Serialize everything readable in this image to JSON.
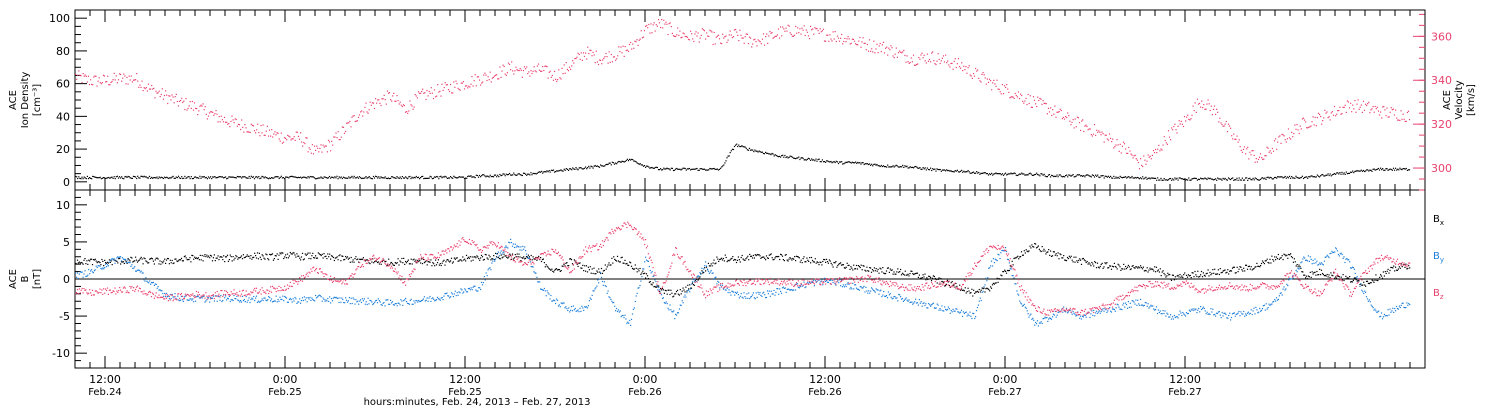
{
  "colors": {
    "density": "#000000",
    "velocity": "#e8426e",
    "bx": "#000000",
    "by": "#1e7fd8",
    "bz": "#e8426e"
  },
  "chart_data": [
    {
      "type": "scatter",
      "panel": "top",
      "ylabel_lines": [
        "ACE",
        "Ion Density",
        "[cm⁻³]"
      ],
      "ylabel_right_lines": [
        "ACE",
        "Velocity",
        "[km/s]"
      ],
      "ylim": [
        -5,
        105
      ],
      "yticks": [
        0,
        20,
        40,
        60,
        80,
        100
      ],
      "ylim_right": [
        290,
        372
      ],
      "yticks_right": [
        300,
        320,
        340,
        360
      ],
      "series": [
        {
          "axis": "left",
          "color": "#000000",
          "x": [
            0,
            1,
            2,
            3,
            4,
            5,
            6,
            7,
            8,
            9,
            10,
            11,
            12,
            13,
            14,
            15,
            16,
            17,
            18,
            19,
            20,
            21,
            22,
            23,
            24,
            25,
            26,
            27,
            28,
            29,
            30,
            31,
            32,
            33,
            34,
            35,
            36,
            37,
            38,
            39,
            40,
            41,
            42,
            43,
            44,
            45,
            46,
            47,
            48,
            49,
            50,
            51,
            52,
            53,
            54,
            55,
            56,
            57,
            58,
            59,
            60,
            61,
            62,
            63,
            64,
            65,
            66,
            67,
            68,
            69,
            70,
            71,
            72,
            73,
            74,
            75,
            76,
            77,
            78,
            79,
            80,
            81,
            82,
            83,
            84,
            85,
            86,
            87,
            88,
            89
          ],
          "y": [
            3,
            3,
            3,
            3,
            3,
            3,
            3,
            3,
            3,
            3,
            3,
            3,
            3,
            3,
            3,
            3,
            3,
            3,
            3,
            3,
            3,
            3,
            3,
            3,
            3,
            3,
            3,
            4,
            4,
            5,
            5,
            6,
            7,
            8,
            9,
            10,
            12,
            14,
            10,
            8,
            8,
            8,
            8,
            8,
            23,
            20,
            18,
            16,
            15,
            14,
            13,
            12,
            12,
            11,
            10,
            10,
            9,
            8,
            7,
            7,
            6,
            5,
            5,
            5,
            5,
            4,
            4,
            4,
            4,
            3,
            3,
            3,
            2,
            2,
            2,
            2,
            2,
            2,
            2,
            2,
            3,
            3,
            3,
            4,
            5,
            6,
            7,
            8,
            8,
            8
          ]
        },
        {
          "axis": "right",
          "color": "#e8426e",
          "x": [
            0,
            1,
            2,
            3,
            4,
            5,
            6,
            7,
            8,
            9,
            10,
            11,
            12,
            13,
            14,
            15,
            16,
            17,
            18,
            19,
            20,
            21,
            22,
            23,
            24,
            25,
            26,
            27,
            28,
            29,
            30,
            31,
            32,
            33,
            34,
            35,
            36,
            37,
            38,
            39,
            40,
            41,
            42,
            43,
            44,
            45,
            46,
            47,
            48,
            49,
            50,
            51,
            52,
            53,
            54,
            55,
            56,
            57,
            58,
            59,
            60,
            61,
            62,
            63,
            64,
            65,
            66,
            67,
            68,
            69,
            70,
            71,
            72,
            73,
            74,
            75,
            76,
            77,
            78,
            79,
            80,
            81,
            82,
            83,
            84,
            85,
            86,
            87,
            88,
            89
          ],
          "y": [
            342,
            340,
            340,
            341,
            341,
            336,
            333,
            330,
            328,
            325,
            322,
            320,
            318,
            316,
            314,
            314,
            307,
            311,
            318,
            326,
            330,
            333,
            327,
            333,
            335,
            337,
            339,
            341,
            343,
            346,
            344,
            345,
            342,
            347,
            353,
            350,
            352,
            355,
            363,
            366,
            362,
            360,
            361,
            358,
            361,
            358,
            359,
            362,
            363,
            362,
            361,
            360,
            358,
            356,
            355,
            352,
            350,
            351,
            349,
            347,
            343,
            339,
            336,
            333,
            330,
            327,
            323,
            320,
            317,
            313,
            309,
            302,
            307,
            316,
            322,
            331,
            326,
            316,
            308,
            304,
            311,
            316,
            321,
            323,
            326,
            329,
            328,
            326,
            325,
            324
          ]
        }
      ]
    },
    {
      "type": "scatter",
      "panel": "bottom",
      "ylabel_lines": [
        "ACE",
        "B",
        "[nT]"
      ],
      "ylim": [
        -12,
        12
      ],
      "yticks": [
        -10,
        -5,
        0,
        5,
        10
      ],
      "legend": [
        {
          "label": "B",
          "sub": "x",
          "color": "#000000"
        },
        {
          "label": "B",
          "sub": "y",
          "color": "#1e7fd8"
        },
        {
          "label": "B",
          "sub": "z",
          "color": "#e8426e"
        }
      ],
      "series": [
        {
          "color": "#000000",
          "x": [
            0,
            1,
            2,
            3,
            4,
            5,
            6,
            7,
            8,
            9,
            10,
            11,
            12,
            13,
            14,
            15,
            16,
            17,
            18,
            19,
            20,
            21,
            22,
            23,
            24,
            25,
            26,
            27,
            28,
            29,
            30,
            31,
            32,
            33,
            34,
            35,
            36,
            37,
            38,
            39,
            40,
            41,
            42,
            43,
            44,
            45,
            46,
            47,
            48,
            49,
            50,
            51,
            52,
            53,
            54,
            55,
            56,
            57,
            58,
            59,
            60,
            61,
            62,
            63,
            64,
            65,
            66,
            67,
            68,
            69,
            70,
            71,
            72,
            73,
            74,
            75,
            76,
            77,
            78,
            79,
            80,
            81,
            82,
            83,
            84,
            85,
            86,
            87,
            88,
            89
          ],
          "y": [
            2.5,
            2.4,
            2.3,
            2.5,
            2.6,
            2.5,
            2.4,
            2.7,
            2.9,
            3.0,
            2.8,
            3.1,
            3.2,
            3.0,
            3.3,
            3.1,
            3.2,
            3.0,
            2.8,
            2.6,
            2.4,
            2.3,
            2.5,
            2.6,
            2.2,
            2.4,
            2.8,
            3.0,
            3.1,
            3.2,
            2.9,
            2.7,
            1.0,
            2.5,
            1.5,
            1.0,
            3.0,
            2.0,
            0.5,
            -1.5,
            -2.0,
            -1.0,
            1.5,
            3.0,
            2.7,
            3.0,
            3.1,
            3.0,
            2.8,
            2.6,
            2.3,
            2.0,
            1.6,
            1.4,
            1.2,
            1.0,
            0.6,
            0.2,
            -0.5,
            -1.0,
            -2.0,
            -1.0,
            1.0,
            3.5,
            4.5,
            3.5,
            3.0,
            2.5,
            2.0,
            1.8,
            1.6,
            1.5,
            1.4,
            0.2,
            0.5,
            0.8,
            1.0,
            1.2,
            1.5,
            2.0,
            3.0,
            3.2,
            0.5,
            1.0,
            0.5,
            0.0,
            -0.5,
            0.5,
            1.5,
            2.0
          ]
        },
        {
          "color": "#1e7fd8",
          "x": [
            0,
            1,
            2,
            3,
            4,
            5,
            6,
            7,
            8,
            9,
            10,
            11,
            12,
            13,
            14,
            15,
            16,
            17,
            18,
            19,
            20,
            21,
            22,
            23,
            24,
            25,
            26,
            27,
            28,
            29,
            30,
            31,
            32,
            33,
            34,
            35,
            36,
            37,
            38,
            39,
            40,
            41,
            42,
            43,
            44,
            45,
            46,
            47,
            48,
            49,
            50,
            51,
            52,
            53,
            54,
            55,
            56,
            57,
            58,
            59,
            60,
            61,
            62,
            63,
            64,
            65,
            66,
            67,
            68,
            69,
            70,
            71,
            72,
            73,
            74,
            75,
            76,
            77,
            78,
            79,
            80,
            81,
            82,
            83,
            84,
            85,
            86,
            87,
            88,
            89
          ],
          "y": [
            0.5,
            1.0,
            2.0,
            3.0,
            1.5,
            -0.5,
            -2.0,
            -2.5,
            -2.6,
            -2.6,
            -2.5,
            -2.6,
            -2.7,
            -2.6,
            -2.7,
            -2.8,
            -2.5,
            -2.7,
            -2.8,
            -2.9,
            -3.0,
            -3.2,
            -3.0,
            -2.8,
            -2.5,
            -2.0,
            -1.5,
            -1.0,
            3.0,
            5.0,
            4.0,
            -1.0,
            -3.0,
            -4.0,
            -4.0,
            0.5,
            -4.0,
            -6.0,
            3.0,
            -2.0,
            -5.0,
            -1.0,
            2.0,
            -1.0,
            -2.0,
            -2.2,
            -2.0,
            -1.5,
            -1.0,
            -0.5,
            -0.2,
            -0.5,
            -1.0,
            -1.5,
            -2.0,
            -2.5,
            -3.0,
            -3.5,
            -4.0,
            -4.5,
            -5.0,
            2.0,
            4.0,
            -3.0,
            -6.0,
            -5.0,
            -4.0,
            -5.0,
            -4.5,
            -4.0,
            -3.5,
            -3.0,
            -4.0,
            -5.0,
            -4.5,
            -4.0,
            -4.5,
            -5.0,
            -4.5,
            -4.0,
            -3.0,
            0.0,
            3.0,
            2.0,
            4.0,
            2.0,
            -2.0,
            -5.0,
            -4.0,
            -3.0
          ]
        },
        {
          "color": "#e8426e",
          "x": [
            0,
            1,
            2,
            3,
            4,
            5,
            6,
            7,
            8,
            9,
            10,
            11,
            12,
            13,
            14,
            15,
            16,
            17,
            18,
            19,
            20,
            21,
            22,
            23,
            24,
            25,
            26,
            27,
            28,
            29,
            30,
            31,
            32,
            33,
            34,
            35,
            36,
            37,
            38,
            39,
            40,
            41,
            42,
            43,
            44,
            45,
            46,
            47,
            48,
            49,
            50,
            51,
            52,
            53,
            54,
            55,
            56,
            57,
            58,
            59,
            60,
            61,
            62,
            63,
            64,
            65,
            66,
            67,
            68,
            69,
            70,
            71,
            72,
            73,
            74,
            75,
            76,
            77,
            78,
            79,
            80,
            81,
            82,
            83,
            84,
            85,
            86,
            87,
            88,
            89
          ],
          "y": [
            -1.5,
            -1.8,
            -1.6,
            -1.5,
            -1.2,
            -2.0,
            -2.5,
            -2.3,
            -2.0,
            -2.2,
            -1.8,
            -1.8,
            -1.6,
            -1.4,
            -1.0,
            0.0,
            1.5,
            0.0,
            -0.5,
            2.0,
            3.0,
            2.0,
            -0.5,
            3.0,
            3.0,
            4.0,
            5.5,
            4.0,
            5.0,
            3.0,
            2.0,
            3.0,
            4.0,
            1.0,
            4.0,
            4.5,
            7.0,
            7.5,
            5.0,
            -2.0,
            4.0,
            1.0,
            -2.0,
            -1.0,
            -0.5,
            -0.3,
            -0.2,
            -0.3,
            -0.5,
            -0.4,
            -0.3,
            -0.2,
            0.0,
            0.2,
            -0.5,
            -1.0,
            -1.2,
            -0.8,
            -0.5,
            -1.0,
            2.0,
            4.5,
            4.0,
            -1.0,
            -4.0,
            -4.5,
            -4.0,
            -4.5,
            -4.0,
            -3.5,
            -2.0,
            -1.0,
            -0.5,
            -1.0,
            -0.5,
            -1.5,
            -1.0,
            -0.8,
            -1.2,
            -0.8,
            -1.0,
            1.0,
            -1.0,
            -2.0,
            1.0,
            -2.0,
            1.0,
            3.0,
            2.5,
            2.0
          ]
        }
      ]
    }
  ],
  "x_axis": {
    "range_hours": [
      0,
      90
    ],
    "major_ticks": [
      {
        "h": 2,
        "time": "12:00",
        "date": "Feb.24"
      },
      {
        "h": 14,
        "time": "0:00",
        "date": "Feb.25"
      },
      {
        "h": 26,
        "time": "12:00",
        "date": "Feb.25"
      },
      {
        "h": 38,
        "time": "0:00",
        "date": "Feb.26"
      },
      {
        "h": 50,
        "time": "12:00",
        "date": "Feb.26"
      },
      {
        "h": 62,
        "time": "0:00",
        "date": "Feb.27"
      },
      {
        "h": 74,
        "time": "12:00",
        "date": "Feb.27"
      }
    ],
    "title": "hours:minutes, Feb. 24, 2013 – Feb. 27, 2013"
  }
}
